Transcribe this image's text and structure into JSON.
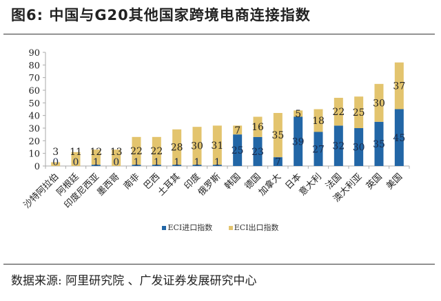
{
  "title": "图6: 中国与G20其他国家跨境电商连接指数",
  "source": "数据来源: 阿里研究院 、广发证券发展研究中心",
  "colors": {
    "import": "#2266A6",
    "export": "#E3C46E"
  },
  "chart_data": {
    "type": "bar",
    "stacked": true,
    "title": "",
    "xlabel": "",
    "ylabel": "",
    "ylim": [
      0,
      90
    ],
    "yticks": [
      0,
      10,
      20,
      30,
      40,
      50,
      60,
      70,
      80,
      90
    ],
    "grid": false,
    "legend_position": "bottom",
    "categories": [
      "沙特阿拉伯",
      "阿根廷",
      "印度尼西亚",
      "墨西哥",
      "南非",
      "巴西",
      "土耳其",
      "印度",
      "俄罗斯",
      "韩国",
      "德国",
      "加拿大",
      "日本",
      "意大利",
      "法国",
      "澳大利亚",
      "英国",
      "美国"
    ],
    "series": [
      {
        "name": "ECI进口指数",
        "values": [
          0,
          0,
          1,
          0,
          1,
          1,
          1,
          1,
          1,
          25,
          23,
          7,
          39,
          27,
          32,
          30,
          35,
          45
        ]
      },
      {
        "name": "ECI出口指数",
        "values": [
          3,
          11,
          12,
          13,
          22,
          22,
          28,
          30,
          31,
          7,
          16,
          35,
          5,
          18,
          22,
          25,
          30,
          37
        ]
      }
    ]
  }
}
